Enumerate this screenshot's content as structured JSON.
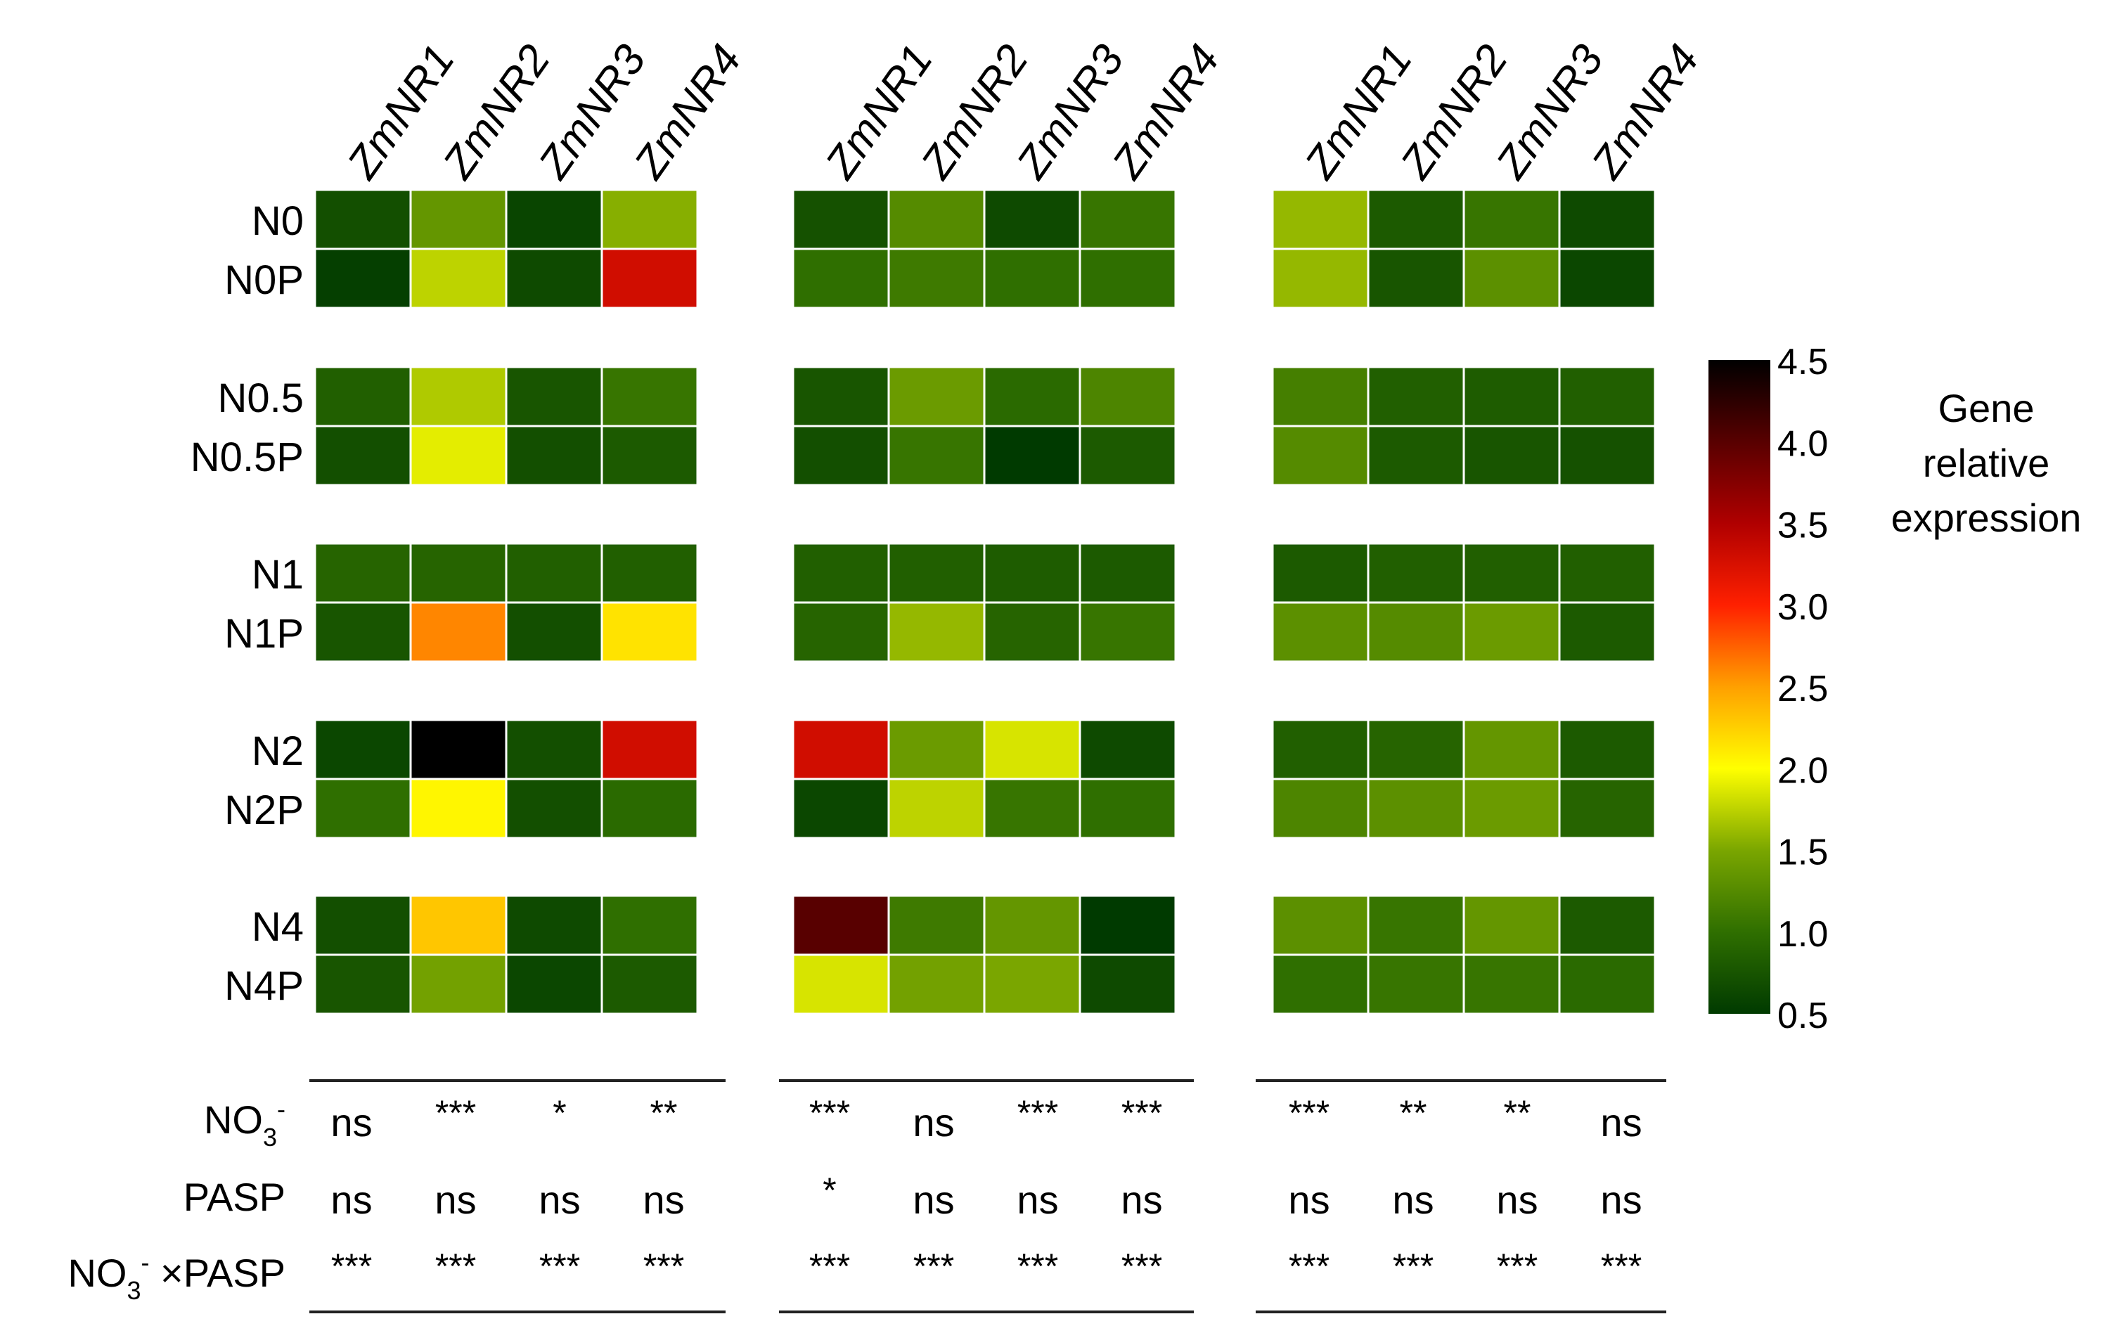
{
  "chart_data": {
    "type": "heatmap",
    "title": "",
    "genes": [
      "ZmNR1",
      "ZmNR2",
      "ZmNR3",
      "ZmNR4"
    ],
    "row_groups": [
      [
        "N0",
        "N0P"
      ],
      [
        "N0.5",
        "N0.5P"
      ],
      [
        "N1",
        "N1P"
      ],
      [
        "N2",
        "N2P"
      ],
      [
        "N4",
        "N4P"
      ]
    ],
    "panels": [
      {
        "values": [
          [
            0.7,
            1.35,
            0.6,
            1.55
          ],
          [
            0.55,
            1.75,
            0.65,
            3.3
          ],
          [
            0.85,
            1.7,
            0.75,
            1.05
          ],
          [
            0.7,
            1.9,
            0.7,
            0.8
          ],
          [
            0.9,
            0.9,
            0.85,
            0.85
          ],
          [
            0.75,
            2.6,
            0.7,
            2.15
          ],
          [
            0.62,
            4.5,
            0.7,
            3.3
          ],
          [
            1.0,
            2.05,
            0.7,
            0.95
          ],
          [
            0.7,
            2.3,
            0.65,
            1.0
          ],
          [
            0.75,
            1.45,
            0.62,
            0.8
          ]
        ],
        "significance": {
          "no3": [
            "ns",
            "***",
            "*",
            "**"
          ],
          "pasp": [
            "ns",
            "ns",
            "ns",
            "ns"
          ],
          "interaction": [
            "***",
            "***",
            "***",
            "***"
          ]
        }
      },
      {
        "values": [
          [
            0.72,
            1.25,
            0.65,
            1.05
          ],
          [
            1.0,
            1.1,
            1.0,
            1.0
          ],
          [
            0.75,
            1.4,
            0.95,
            1.2
          ],
          [
            0.7,
            1.05,
            0.45,
            0.8
          ],
          [
            0.85,
            0.85,
            0.82,
            0.8
          ],
          [
            0.9,
            1.6,
            0.9,
            1.05
          ],
          [
            3.3,
            1.4,
            1.85,
            0.65
          ],
          [
            0.62,
            1.75,
            1.05,
            1.0
          ],
          [
            4.0,
            1.1,
            1.35,
            0.5
          ],
          [
            1.85,
            1.45,
            1.5,
            0.65
          ]
        ],
        "significance": {
          "no3": [
            "***",
            "ns",
            "***",
            "***"
          ],
          "pasp": [
            "*",
            "ns",
            "ns",
            "ns"
          ],
          "interaction": [
            "***",
            "***",
            "***",
            "***"
          ]
        }
      },
      {
        "values": [
          [
            1.6,
            0.8,
            1.05,
            0.65
          ],
          [
            1.6,
            0.75,
            1.3,
            0.62
          ],
          [
            1.15,
            0.85,
            0.82,
            0.85
          ],
          [
            1.25,
            0.8,
            0.75,
            0.72
          ],
          [
            0.8,
            0.85,
            0.85,
            0.85
          ],
          [
            1.3,
            1.25,
            1.4,
            0.8
          ],
          [
            0.85,
            0.9,
            1.35,
            0.8
          ],
          [
            1.2,
            1.3,
            1.4,
            0.9
          ],
          [
            1.3,
            1.05,
            1.35,
            0.8
          ],
          [
            1.0,
            1.05,
            1.05,
            0.95
          ]
        ],
        "significance": {
          "no3": [
            "***",
            "**",
            "**",
            "ns"
          ],
          "pasp": [
            "ns",
            "ns",
            "ns",
            "ns"
          ],
          "interaction": [
            "***",
            "***",
            "***",
            "***"
          ]
        }
      }
    ],
    "stat_rows": {
      "no3": {
        "base": "NO",
        "sub": "3",
        "sup": "-"
      },
      "pasp": {
        "text": "PASP"
      },
      "interaction": {
        "base": "NO",
        "sub": "3",
        "sup": "-",
        "rest": " ×PASP"
      }
    },
    "colorbar": {
      "title": [
        "Gene",
        "relative",
        "expression"
      ],
      "range": [
        0.5,
        4.5
      ],
      "ticks": [
        4.5,
        4.0,
        3.5,
        3.0,
        2.5,
        2.0,
        1.5,
        1.0,
        0.5
      ],
      "tick_labels": [
        "4.5",
        "4.0",
        "3.5",
        "3.0",
        "2.5",
        "2.0",
        "1.5",
        "1.0",
        "0.5"
      ],
      "colors": [
        "#003a00",
        "#4e8f00",
        "#ffff00",
        "#ff8c00",
        "#ff0000",
        "#000000"
      ]
    }
  }
}
